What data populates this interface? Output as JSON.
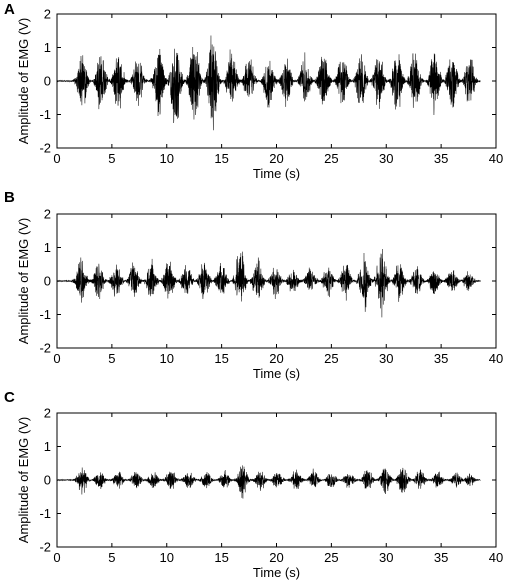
{
  "chart_data": [
    {
      "panel_label": "A",
      "type": "line",
      "xlabel": "Time (s)",
      "ylabel": "Amplitude of EMG (V)",
      "xlim": [
        0,
        40
      ],
      "ylim": [
        -2,
        2
      ],
      "xticks": [
        "0",
        "5",
        "10",
        "15",
        "20",
        "25",
        "30",
        "35",
        "40"
      ],
      "yticks": [
        "-2",
        "-1",
        "0",
        "1",
        "2"
      ],
      "grid": false,
      "burst_times": [
        2.3,
        4.0,
        5.6,
        7.4,
        9.3,
        10.8,
        12.5,
        14.2,
        15.9,
        17.5,
        19.3,
        20.9,
        22.6,
        24.3,
        26.0,
        27.7,
        29.3,
        31.0,
        32.6,
        34.4,
        36.0,
        37.6
      ],
      "burst_peak_positive": [
        0.9,
        1.1,
        1.0,
        0.9,
        1.2,
        1.4,
        1.4,
        1.4,
        0.9,
        0.8,
        0.9,
        0.8,
        0.8,
        0.9,
        0.9,
        0.9,
        0.9,
        1.0,
        1.0,
        1.0,
        1.0,
        0.8
      ],
      "burst_peak_negative": [
        -0.9,
        -0.9,
        -1.0,
        -0.8,
        -1.2,
        -1.7,
        -1.5,
        -1.8,
        -1.1,
        -0.9,
        -1.0,
        -0.9,
        -0.9,
        -1.0,
        -1.0,
        -1.0,
        -1.2,
        -1.1,
        -1.1,
        -1.2,
        -1.0,
        -0.9
      ]
    },
    {
      "panel_label": "B",
      "type": "line",
      "xlabel": "Time (s)",
      "ylabel": "Amplitude of EMG (V)",
      "xlim": [
        0,
        40
      ],
      "ylim": [
        -2,
        2
      ],
      "xticks": [
        "0",
        "5",
        "10",
        "15",
        "20",
        "25",
        "30",
        "35",
        "40"
      ],
      "yticks": [
        "-2",
        "-1",
        "0",
        "1",
        "2"
      ],
      "grid": false,
      "burst_times": [
        2.2,
        3.8,
        5.4,
        7.0,
        8.6,
        10.2,
        11.8,
        13.4,
        15.0,
        16.7,
        18.3,
        19.9,
        21.5,
        23.1,
        24.7,
        26.3,
        28.0,
        29.6,
        31.2,
        32.8,
        34.4,
        36.0,
        37.5
      ],
      "burst_peak_positive": [
        0.8,
        0.6,
        0.6,
        0.6,
        0.6,
        0.6,
        0.6,
        0.6,
        0.5,
        0.5,
        0.6,
        0.5,
        0.4,
        0.4,
        0.5,
        0.5,
        0.6,
        0.6,
        0.5,
        0.5,
        0.4,
        0.4,
        0.3
      ],
      "burst_peak_negative": [
        -0.7,
        -0.6,
        -0.6,
        -0.7,
        -0.7,
        -0.8,
        -0.6,
        -0.7,
        -0.7,
        -1.2,
        -0.8,
        -0.6,
        -0.5,
        -0.5,
        -0.6,
        -0.7,
        -1.1,
        -1.3,
        -0.7,
        -0.6,
        -0.5,
        -0.5,
        -0.4
      ]
    },
    {
      "panel_label": "C",
      "type": "line",
      "xlabel": "Time (s)",
      "ylabel": "Amplitude of EMG (V)",
      "xlim": [
        0,
        40
      ],
      "ylim": [
        -2,
        2
      ],
      "xticks": [
        "0",
        "5",
        "10",
        "15",
        "20",
        "25",
        "30",
        "35",
        "40"
      ],
      "yticks": [
        "-2",
        "-1",
        "0",
        "1",
        "2"
      ],
      "grid": false,
      "burst_times": [
        2.3,
        3.9,
        5.6,
        7.2,
        8.8,
        10.4,
        12.0,
        13.6,
        15.3,
        16.9,
        18.5,
        20.1,
        21.8,
        23.4,
        25.0,
        26.6,
        28.3,
        29.9,
        31.5,
        33.1,
        34.7,
        36.4,
        37.6
      ],
      "burst_peak_positive": [
        0.5,
        0.3,
        0.3,
        0.3,
        0.3,
        0.3,
        0.3,
        0.3,
        0.3,
        0.4,
        0.3,
        0.3,
        0.4,
        0.3,
        0.3,
        0.3,
        0.4,
        0.5,
        0.5,
        0.4,
        0.3,
        0.3,
        0.2
      ],
      "burst_peak_negative": [
        -0.4,
        -0.3,
        -0.3,
        -0.3,
        -0.3,
        -0.4,
        -0.3,
        -0.3,
        -0.3,
        -0.6,
        -0.4,
        -0.3,
        -0.4,
        -0.4,
        -0.3,
        -0.3,
        -0.4,
        -0.5,
        -0.5,
        -0.4,
        -0.3,
        -0.3,
        -0.2
      ]
    }
  ]
}
